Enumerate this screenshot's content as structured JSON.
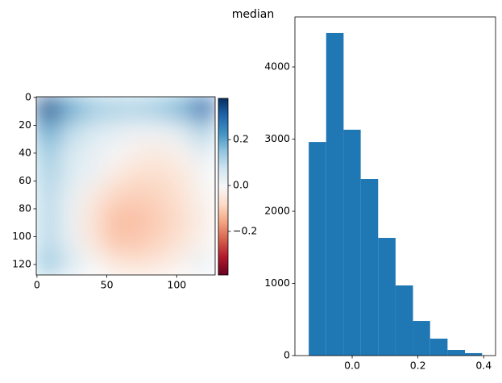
{
  "title": "median",
  "chart_data": [
    {
      "type": "heatmap",
      "z": [
        [
          0.34,
          0.2,
          0.14,
          0.12,
          0.12,
          0.14,
          0.18,
          0.3
        ],
        [
          0.2,
          0.1,
          0.06,
          0.04,
          0.02,
          0.02,
          0.05,
          0.12
        ],
        [
          0.14,
          0.06,
          0.03,
          0.0,
          -0.03,
          -0.04,
          -0.02,
          0.04
        ],
        [
          0.12,
          0.05,
          0.02,
          -0.04,
          -0.07,
          -0.07,
          -0.05,
          0.0
        ],
        [
          0.1,
          0.03,
          -0.04,
          -0.09,
          -0.1,
          -0.09,
          -0.06,
          -0.02
        ],
        [
          0.1,
          0.02,
          -0.06,
          -0.12,
          -0.12,
          -0.1,
          -0.07,
          -0.03
        ],
        [
          0.1,
          0.03,
          -0.05,
          -0.11,
          -0.11,
          -0.09,
          -0.06,
          -0.02
        ],
        [
          0.14,
          0.06,
          0.0,
          -0.05,
          -0.06,
          -0.05,
          -0.02,
          0.02
        ]
      ],
      "xlim": [
        -0.5,
        127.5
      ],
      "xticks": [
        0,
        50,
        100
      ],
      "ylim": [
        127.5,
        -0.5
      ],
      "yticks": [
        0,
        20,
        40,
        60,
        80,
        100,
        120
      ],
      "zlim": [
        -0.39,
        0.38
      ],
      "zticks": [
        {
          "value": -0.2,
          "label": "−0.2"
        },
        {
          "value": 0,
          "label": "0.0"
        },
        0.2
      ],
      "colormap": [
        "#67001f",
        "#b2182b",
        "#d6604d",
        "#f4a582",
        "#fddbc7",
        "#f7f7f7",
        "#d1e5f0",
        "#92c5de",
        "#4393c3",
        "#2166ac",
        "#053061"
      ]
    },
    {
      "type": "histogram",
      "bins": [
        -0.132,
        -0.079,
        -0.026,
        0.026,
        0.079,
        0.132,
        0.185,
        0.237,
        0.29,
        0.343,
        0.395
      ],
      "values": [
        2960,
        4470,
        3130,
        2447,
        1631,
        972,
        480,
        235,
        78,
        34
      ],
      "color": "#1f77b4",
      "xlim": [
        -0.174,
        0.436
      ],
      "xticks": [
        {
          "value": 0,
          "label": "0.0"
        },
        0.2,
        0.4
      ],
      "ylim": [
        0,
        4693
      ],
      "yticks": [
        0,
        1000,
        2000,
        3000,
        4000
      ]
    }
  ]
}
